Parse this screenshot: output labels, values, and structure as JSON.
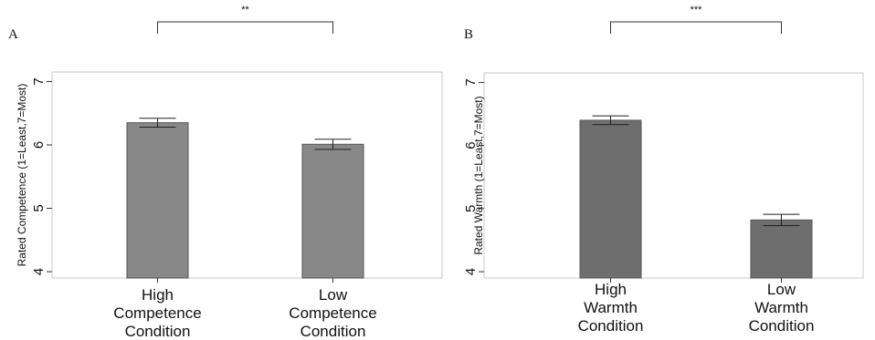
{
  "chart_data": [
    {
      "panel": "A",
      "type": "bar",
      "categories": [
        [
          "High",
          "Competence",
          "Condition"
        ],
        [
          "Low",
          "Competence",
          "Condition"
        ]
      ],
      "values": [
        6.35,
        6.01
      ],
      "errors": [
        0.07,
        0.08
      ],
      "ylabel": "Rated Competence (1=Least,7=Most)",
      "ylim": [
        3.9,
        7.15
      ],
      "yticks": [
        4,
        5,
        6,
        7
      ],
      "bar_color": "#888888",
      "significance": "**",
      "grid": false
    },
    {
      "panel": "B",
      "type": "bar",
      "categories": [
        [
          "High",
          "Warmth",
          "Condition"
        ],
        [
          "Low",
          "Warmth",
          "Condition"
        ]
      ],
      "values": [
        6.4,
        4.82
      ],
      "errors": [
        0.07,
        0.09
      ],
      "ylabel": "Rated Warmth (1=Least,7=Most)",
      "ylim": [
        3.9,
        7.15
      ],
      "yticks": [
        4,
        5,
        6,
        7
      ],
      "bar_color": "#6e6e6e",
      "significance": "***",
      "grid": false
    }
  ]
}
